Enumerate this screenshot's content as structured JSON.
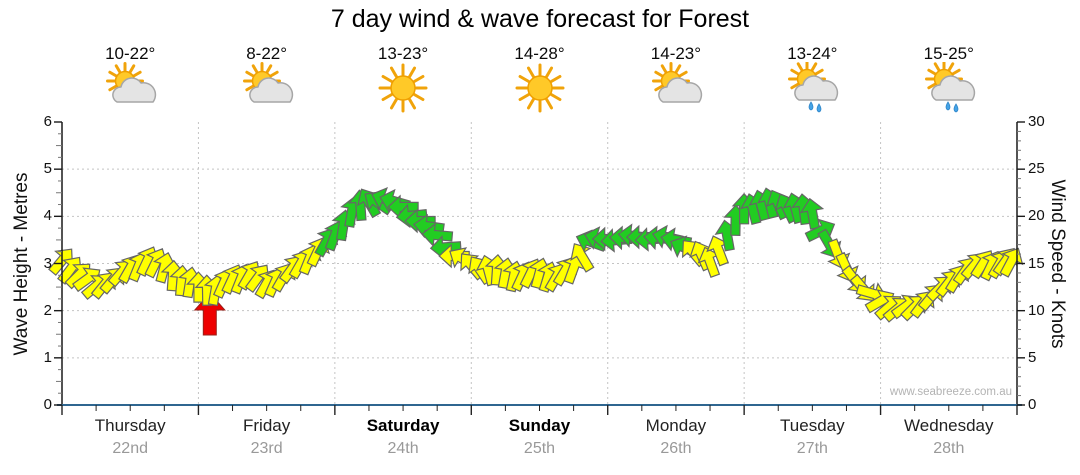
{
  "title": "7 day wind & wave forecast for Forest",
  "watermark": "www.seabreeze.com.au",
  "days": [
    {
      "name": "Thursday",
      "date": "22nd",
      "temp": "10-22°",
      "icon": "sun-cloud",
      "bold": false
    },
    {
      "name": "Friday",
      "date": "23rd",
      "temp": "8-22°",
      "icon": "sun-cloud",
      "bold": false
    },
    {
      "name": "Saturday",
      "date": "24th",
      "temp": "13-23°",
      "icon": "sun",
      "bold": true
    },
    {
      "name": "Sunday",
      "date": "25th",
      "temp": "14-28°",
      "icon": "sun",
      "bold": true
    },
    {
      "name": "Monday",
      "date": "26th",
      "temp": "14-23°",
      "icon": "sun-cloud",
      "bold": false
    },
    {
      "name": "Tuesday",
      "date": "27th",
      "temp": "13-24°",
      "icon": "sun-cloud-rain",
      "bold": false
    }
  ],
  "last_day": {
    "name": "Wednesday",
    "date": "28th",
    "temp": "15-25°",
    "icon": "sun-cloud-rain",
    "bold": false
  },
  "left_axis": {
    "label": "Wave Height - Metres",
    "min": 0,
    "max": 6,
    "ticks": [
      0,
      1,
      2,
      3,
      4,
      5,
      6
    ]
  },
  "right_axis": {
    "label": "Wind Speed - Knots",
    "min": 0,
    "max": 30,
    "ticks": [
      0,
      5,
      10,
      15,
      20,
      25,
      30
    ]
  },
  "colors": {
    "light_wind_arrow": "#FFFF00",
    "strong_wind_arrow": "#22CC22",
    "arrow_outline": "#666666",
    "marker_red": "#EE0000",
    "bottom_axis": "#2F6690",
    "axis": "#1a1a1a",
    "grid": "#c4c4c4",
    "date_text": "#999999"
  },
  "chart_data": {
    "type": "scatter",
    "subtype": "wind-direction-arrows",
    "title": "7 day wind & wave forecast for Forest",
    "x_unit": "hours from Thursday 00:00 (7 days, 0-168)",
    "x_categories": [
      "Thursday 22nd",
      "Friday 23rd",
      "Saturday 24th",
      "Sunday 25th",
      "Monday 26th",
      "Tuesday 27th",
      "Wednesday 28th"
    ],
    "y_right_unit": "knots",
    "y_right_range": [
      0,
      30
    ],
    "y_left_unit": "metres wave height",
    "y_left_range": [
      0,
      6
    ],
    "grid": "dotted, horizontal at 1-5 m, vertical at day boundaries",
    "legend": "none",
    "green_threshold_knots": 16.5,
    "points_format": "[hour, wind_knots, arrow_direction_deg_clockwise_from_up]",
    "points": [
      [
        0,
        15.3,
        40
      ],
      [
        3,
        13.8,
        45
      ],
      [
        6,
        12.6,
        50
      ],
      [
        9,
        13.3,
        40
      ],
      [
        12,
        14.5,
        30
      ],
      [
        15,
        15.3,
        25
      ],
      [
        18,
        14.6,
        15
      ],
      [
        21,
        13.2,
        5
      ],
      [
        24,
        12.5,
        0
      ],
      [
        27,
        12.2,
        10
      ],
      [
        30,
        13.4,
        25
      ],
      [
        33,
        13.8,
        30
      ],
      [
        36,
        12.9,
        30
      ],
      [
        39,
        13.6,
        30
      ],
      [
        42,
        15.0,
        30
      ],
      [
        45,
        16.3,
        25
      ],
      [
        48,
        18.0,
        20
      ],
      [
        51,
        20.5,
        10
      ],
      [
        54,
        21.5,
        -30
      ],
      [
        57,
        21.8,
        -70
      ],
      [
        60,
        21.0,
        -90
      ],
      [
        63,
        19.5,
        -90
      ],
      [
        66,
        18.0,
        -85
      ],
      [
        69,
        15.8,
        -90
      ],
      [
        72,
        14.8,
        -40
      ],
      [
        75,
        14.3,
        -15
      ],
      [
        78,
        14.0,
        10
      ],
      [
        81,
        13.7,
        25
      ],
      [
        84,
        14.0,
        15
      ],
      [
        87,
        13.6,
        30
      ],
      [
        90,
        14.5,
        20
      ],
      [
        93,
        17.3,
        -70
      ],
      [
        96,
        17.6,
        -90
      ],
      [
        99,
        17.7,
        -88
      ],
      [
        102,
        17.8,
        -90
      ],
      [
        105,
        17.7,
        -85
      ],
      [
        108,
        17.5,
        -80
      ],
      [
        111,
        16.2,
        -40
      ],
      [
        114,
        15.2,
        -20
      ],
      [
        117,
        18.0,
        -10
      ],
      [
        120,
        20.8,
        0
      ],
      [
        123,
        21.2,
        -15
      ],
      [
        126,
        21.3,
        -25
      ],
      [
        129,
        20.9,
        -15
      ],
      [
        132,
        20.3,
        -10
      ],
      [
        135,
        17.0,
        150
      ],
      [
        138,
        14.5,
        155
      ],
      [
        141,
        12.3,
        140
      ],
      [
        144,
        11.0,
        60
      ],
      [
        147,
        10.2,
        50
      ],
      [
        150,
        10.4,
        45
      ],
      [
        153,
        11.5,
        40
      ],
      [
        156,
        13.0,
        38
      ],
      [
        159,
        14.3,
        35
      ],
      [
        162,
        15.0,
        33
      ],
      [
        165,
        15.0,
        30
      ],
      [
        167,
        15.2,
        28
      ]
    ],
    "red_marker": {
      "hour": 26,
      "direction": "up",
      "meaning": "time marker below wind curve"
    }
  }
}
